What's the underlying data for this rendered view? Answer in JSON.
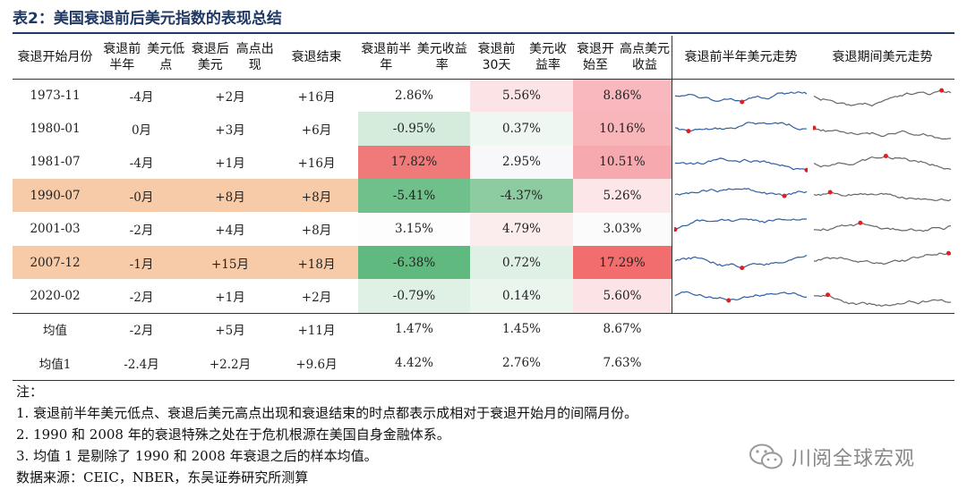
{
  "title": "表2：美国衰退前后美元指数的表现总结",
  "headers": [
    [
      "衰退",
      "开始月份"
    ],
    [
      "衰退前半年",
      "美元低点"
    ],
    [
      "衰退后美元",
      "高点出现"
    ],
    [
      "衰退结束"
    ],
    [
      "衰退前半年",
      "美元收益率"
    ],
    [
      "衰退前30天",
      "美元收益率"
    ],
    [
      "衰退开始至",
      "高点美元收益"
    ],
    [
      "衰退前半年",
      "美元走势"
    ],
    [
      "衰退期间",
      "美元走势"
    ]
  ],
  "rows": [
    {
      "date": "1973-11",
      "low": "-4月",
      "high": "+2月",
      "end": "+16月",
      "r6m": "2.86%",
      "r30d": "5.56%",
      "rpeak": "8.86%",
      "highlight": false,
      "c6m": "#ffffff",
      "c30d": "#fce4e6",
      "cpeak": "#f8b8bd"
    },
    {
      "date": "1980-01",
      "low": "0月",
      "high": "+3月",
      "end": "+6月",
      "r6m": "-0.95%",
      "r30d": "0.37%",
      "rpeak": "10.16%",
      "highlight": false,
      "c6m": "#d5ecdd",
      "c30d": "#eef7f1",
      "cpeak": "#f8b6bb"
    },
    {
      "date": "1981-07",
      "low": "-4月",
      "high": "+1月",
      "end": "+16月",
      "r6m": "17.82%",
      "r30d": "2.95%",
      "rpeak": "10.51%",
      "highlight": false,
      "c6m": "#f07a7a",
      "c30d": "#f8f8fb",
      "cpeak": "#f6a9af"
    },
    {
      "date": "1990-07",
      "low": "-0月",
      "high": "+8月",
      "end": "+8月",
      "r6m": "-5.41%",
      "r30d": "-4.37%",
      "rpeak": "5.26%",
      "highlight": true,
      "c6m": "#6fc08a",
      "c30d": "#8dcca1",
      "cpeak": "#fce6e8"
    },
    {
      "date": "2001-03",
      "low": "-2月",
      "high": "+4月",
      "end": "+8月",
      "r6m": "3.15%",
      "r30d": "4.79%",
      "rpeak": "3.03%",
      "highlight": false,
      "c6m": "#fdfdfd",
      "c30d": "#fbecee",
      "cpeak": "#fbfbfc"
    },
    {
      "date": "2007-12",
      "low": "-1月",
      "high": "+15月",
      "end": "+18月",
      "r6m": "-6.38%",
      "r30d": "0.72%",
      "rpeak": "17.29%",
      "highlight": true,
      "c6m": "#60b97e",
      "c30d": "#dff0e5",
      "cpeak": "#f26d6d"
    },
    {
      "date": "2020-02",
      "low": "-2月",
      "high": "+1月",
      "end": "+2月",
      "r6m": "-0.79%",
      "r30d": "0.14%",
      "rpeak": "5.60%",
      "highlight": false,
      "c6m": "#dff0e5",
      "c30d": "#eaf5ee",
      "cpeak": "#fce4e6"
    }
  ],
  "summary": [
    {
      "label": "均值",
      "low": "-2月",
      "high": "+5月",
      "end": "+11月",
      "r6m": "1.47%",
      "r30d": "1.45%",
      "rpeak": "8.67%"
    },
    {
      "label": "均值1",
      "low": "-2.4月",
      "high": "+2.2月",
      "end": "+9.6月",
      "r6m": "4.42%",
      "r30d": "2.76%",
      "rpeak": "7.63%"
    }
  ],
  "notes": [
    "注：",
    "1. 衰退前半年美元低点、衰退后美元高点出现和衰退结束的时点都表示成相对于衰退开始月的间隔月份。",
    "2. 1990 和 2008 年的衰退特殊之处在于危机根源在美国自身金融体系。",
    "3. 均值 1 是剔除了 1990 和 2008 年衰退之后的样本均值。",
    "数据来源：CEIC，NBER，东吴证券研究所测算"
  ],
  "watermark": "川阅全球宏观",
  "colors": {
    "title": "#1f3864",
    "spark_pre": "#2e5fa3",
    "spark_during": "#666666",
    "marker": "#e02020",
    "highlight": "#f7cba8"
  }
}
